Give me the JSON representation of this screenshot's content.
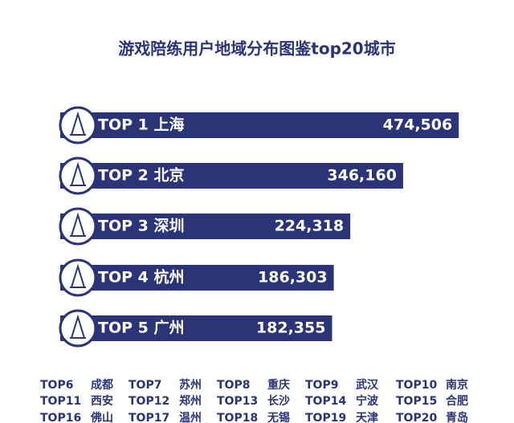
{
  "chart_data": {
    "type": "bar",
    "title": "游戏陪练用户地域分布图鉴top20城市",
    "categories": [
      "TOP 1 上海",
      "TOP 2 北京",
      "TOP 3 深圳",
      "TOP 4 杭州",
      "TOP 5 广州"
    ],
    "values": [
      474506,
      346160,
      224318,
      186303,
      182355
    ],
    "value_labels": [
      "474,506",
      "346,160",
      "224,318",
      "186,303",
      "182,355"
    ],
    "color": "#2a3477"
  },
  "more_cities": [
    [
      "TOP6",
      "成都"
    ],
    [
      "TOP7",
      "苏州"
    ],
    [
      "TOP8",
      "重庆"
    ],
    [
      "TOP9",
      "武汉"
    ],
    [
      "TOP10",
      "南京"
    ],
    [
      "TOP11",
      "西安"
    ],
    [
      "TOP12",
      "郑州"
    ],
    [
      "TOP13",
      "长沙"
    ],
    [
      "TOP14",
      "宁波"
    ],
    [
      "TOP15",
      "合肥"
    ],
    [
      "TOP16",
      "佛山"
    ],
    [
      "TOP17",
      "温州"
    ],
    [
      "TOP18",
      "无锡"
    ],
    [
      "TOP19",
      "天津"
    ],
    [
      "TOP20",
      "青岛"
    ]
  ]
}
